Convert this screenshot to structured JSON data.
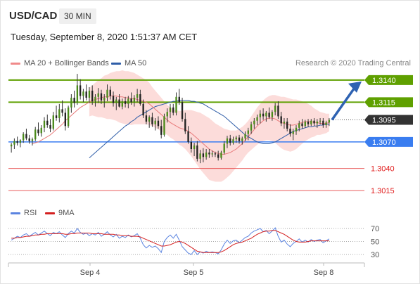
{
  "header": {
    "pair": "USD/CAD",
    "timeframe": "30 MIN",
    "datetime": "Tuesday, September 8, 2020 1:51:37 AM CET",
    "credit": "Research © 2020 Trading Central"
  },
  "legend": {
    "ma20": "MA 20 + Bollinger Bands",
    "ma50": "MA 50",
    "rsi": "RSI",
    "rsi_ma": "9MA"
  },
  "colors": {
    "resistance": "#5fa000",
    "support": "#3a7df0",
    "projection": "#2e62b2",
    "current": "#333333",
    "weak_support": "#e01a1a",
    "ma20": "#e87a7a",
    "bollinger_fill": "#fcd6d3",
    "ma50": "#2f5ea8",
    "rsi": "#5b84e0",
    "rsi_ma": "#d42020"
  },
  "chart_data": [
    {
      "type": "candlestick",
      "x_labels": [
        "Sep 4",
        "Sep 5",
        "Sep 8"
      ],
      "ylim": [
        1.3,
        1.3155
      ],
      "levels": [
        {
          "label": "1.3140",
          "value": 1.314,
          "kind": "resistance"
        },
        {
          "label": "1.3115",
          "value": 1.3115,
          "kind": "resistance"
        },
        {
          "label": "1.3095",
          "value": 1.3095,
          "kind": "current"
        },
        {
          "label": "1.3070",
          "value": 1.307,
          "kind": "support"
        },
        {
          "label": "1.3040",
          "value": 1.304,
          "kind": "weak"
        },
        {
          "label": "1.3015",
          "value": 1.3015,
          "kind": "weak"
        }
      ],
      "candles": [
        [
          1.3065,
          1.3069,
          1.3058,
          1.3067
        ],
        [
          1.3067,
          1.3074,
          1.3062,
          1.3071
        ],
        [
          1.3071,
          1.3076,
          1.3066,
          1.3069
        ],
        [
          1.3069,
          1.3073,
          1.3064,
          1.3072
        ],
        [
          1.3072,
          1.3081,
          1.3069,
          1.3079
        ],
        [
          1.3079,
          1.3085,
          1.3072,
          1.3074
        ],
        [
          1.3074,
          1.3078,
          1.3068,
          1.3071
        ],
        [
          1.3071,
          1.3075,
          1.3066,
          1.3073
        ],
        [
          1.3073,
          1.3087,
          1.3071,
          1.3084
        ],
        [
          1.3084,
          1.3092,
          1.3077,
          1.308
        ],
        [
          1.308,
          1.3089,
          1.3076,
          1.3086
        ],
        [
          1.3086,
          1.3098,
          1.3081,
          1.3094
        ],
        [
          1.3094,
          1.3101,
          1.3086,
          1.3089
        ],
        [
          1.3089,
          1.3096,
          1.3081,
          1.3085
        ],
        [
          1.3085,
          1.3104,
          1.3083,
          1.31
        ],
        [
          1.31,
          1.3111,
          1.3094,
          1.3097
        ],
        [
          1.3097,
          1.3113,
          1.3092,
          1.3107
        ],
        [
          1.3107,
          1.3117,
          1.3099,
          1.3103
        ],
        [
          1.3103,
          1.3108,
          1.3083,
          1.3088
        ],
        [
          1.3088,
          1.3111,
          1.3086,
          1.3109
        ],
        [
          1.3109,
          1.3124,
          1.3103,
          1.312
        ],
        [
          1.312,
          1.3128,
          1.3109,
          1.3114
        ],
        [
          1.3114,
          1.3147,
          1.3112,
          1.3134
        ],
        [
          1.3134,
          1.3141,
          1.3118,
          1.3122
        ],
        [
          1.3122,
          1.313,
          1.3115,
          1.3127
        ],
        [
          1.3127,
          1.3135,
          1.3117,
          1.312
        ],
        [
          1.312,
          1.3132,
          1.3114,
          1.3128
        ],
        [
          1.3128,
          1.3134,
          1.3112,
          1.3116
        ],
        [
          1.3116,
          1.3124,
          1.311,
          1.3121
        ],
        [
          1.3121,
          1.3131,
          1.3114,
          1.3125
        ],
        [
          1.3125,
          1.3129,
          1.3113,
          1.3117
        ],
        [
          1.3117,
          1.3124,
          1.3109,
          1.312
        ],
        [
          1.312,
          1.3135,
          1.3116,
          1.3129
        ],
        [
          1.3129,
          1.3133,
          1.3118,
          1.3122
        ],
        [
          1.3122,
          1.3127,
          1.311,
          1.3114
        ],
        [
          1.3114,
          1.3121,
          1.3106,
          1.3118
        ],
        [
          1.3118,
          1.3124,
          1.3109,
          1.311
        ],
        [
          1.311,
          1.3119,
          1.3107,
          1.3116
        ],
        [
          1.3116,
          1.3121,
          1.3109,
          1.3113
        ],
        [
          1.3113,
          1.3122,
          1.3108,
          1.3119
        ],
        [
          1.3119,
          1.3126,
          1.3112,
          1.3115
        ],
        [
          1.3115,
          1.3123,
          1.311,
          1.312
        ],
        [
          1.312,
          1.313,
          1.3115,
          1.3124
        ],
        [
          1.3124,
          1.3129,
          1.3111,
          1.3113
        ],
        [
          1.3113,
          1.3118,
          1.3097,
          1.31
        ],
        [
          1.31,
          1.3106,
          1.309,
          1.3093
        ],
        [
          1.3093,
          1.31,
          1.3086,
          1.3098
        ],
        [
          1.3098,
          1.3103,
          1.3087,
          1.309
        ],
        [
          1.309,
          1.3097,
          1.3083,
          1.3094
        ],
        [
          1.3094,
          1.3099,
          1.3085,
          1.3088
        ],
        [
          1.3088,
          1.3095,
          1.3074,
          1.3078
        ],
        [
          1.3078,
          1.3102,
          1.3076,
          1.3099
        ],
        [
          1.3099,
          1.3108,
          1.3092,
          1.3104
        ],
        [
          1.3104,
          1.3113,
          1.3097,
          1.3109
        ],
        [
          1.3109,
          1.3113,
          1.31,
          1.3103
        ],
        [
          1.3103,
          1.3126,
          1.31,
          1.3121
        ],
        [
          1.3121,
          1.313,
          1.3112,
          1.3115
        ],
        [
          1.3115,
          1.312,
          1.3093,
          1.3096
        ],
        [
          1.3096,
          1.3103,
          1.3079,
          1.3082
        ],
        [
          1.3082,
          1.3088,
          1.3068,
          1.307
        ],
        [
          1.307,
          1.3075,
          1.3058,
          1.3062
        ],
        [
          1.3062,
          1.3069,
          1.3054,
          1.3066
        ],
        [
          1.3066,
          1.3071,
          1.3048,
          1.3051
        ],
        [
          1.3051,
          1.3061,
          1.3046,
          1.3057
        ],
        [
          1.3057,
          1.3063,
          1.3047,
          1.3053
        ],
        [
          1.3053,
          1.3062,
          1.305,
          1.3058
        ],
        [
          1.3058,
          1.3062,
          1.3052,
          1.3056
        ],
        [
          1.3056,
          1.306,
          1.3053,
          1.3057
        ],
        [
          1.3057,
          1.3059,
          1.3053,
          1.3056
        ],
        [
          1.3056,
          1.306,
          1.3049,
          1.3052
        ],
        [
          1.3052,
          1.306,
          1.305,
          1.3058
        ],
        [
          1.3058,
          1.3071,
          1.3056,
          1.3068
        ],
        [
          1.3068,
          1.3077,
          1.3063,
          1.3074
        ],
        [
          1.3074,
          1.3078,
          1.3066,
          1.3069
        ],
        [
          1.3069,
          1.3076,
          1.3067,
          1.3073
        ],
        [
          1.3073,
          1.3077,
          1.3069,
          1.3075
        ],
        [
          1.3075,
          1.3078,
          1.3068,
          1.3071
        ],
        [
          1.3071,
          1.3076,
          1.3067,
          1.3074
        ],
        [
          1.3074,
          1.3082,
          1.3071,
          1.3079
        ],
        [
          1.3079,
          1.3086,
          1.3072,
          1.3083
        ],
        [
          1.3083,
          1.3093,
          1.3079,
          1.309
        ],
        [
          1.309,
          1.3097,
          1.3085,
          1.3094
        ],
        [
          1.3094,
          1.3101,
          1.3089,
          1.3098
        ],
        [
          1.3098,
          1.3106,
          1.3091,
          1.3102
        ],
        [
          1.3102,
          1.3108,
          1.3095,
          1.3099
        ],
        [
          1.3099,
          1.3105,
          1.3093,
          1.3103
        ],
        [
          1.3103,
          1.3109,
          1.3096,
          1.3098
        ],
        [
          1.3098,
          1.3106,
          1.3094,
          1.3104
        ],
        [
          1.3104,
          1.3114,
          1.31,
          1.3111
        ],
        [
          1.3111,
          1.3116,
          1.3096,
          1.3099
        ],
        [
          1.3099,
          1.3104,
          1.3088,
          1.3091
        ],
        [
          1.3091,
          1.3097,
          1.3085,
          1.3093
        ],
        [
          1.3093,
          1.3097,
          1.3082,
          1.3085
        ],
        [
          1.3085,
          1.309,
          1.3076,
          1.3079
        ],
        [
          1.3079,
          1.3085,
          1.3072,
          1.3082
        ],
        [
          1.3082,
          1.3089,
          1.3078,
          1.3086
        ],
        [
          1.3086,
          1.3094,
          1.3082,
          1.3091
        ],
        [
          1.3091,
          1.3096,
          1.3085,
          1.3088
        ],
        [
          1.3088,
          1.3095,
          1.3086,
          1.3093
        ],
        [
          1.3093,
          1.3096,
          1.3087,
          1.309
        ],
        [
          1.309,
          1.3096,
          1.3088,
          1.3094
        ],
        [
          1.3094,
          1.3097,
          1.3088,
          1.3091
        ],
        [
          1.3091,
          1.3096,
          1.3086,
          1.3093
        ],
        [
          1.3093,
          1.3097,
          1.309,
          1.3094
        ],
        [
          1.3094,
          1.3097,
          1.3086,
          1.3089
        ],
        [
          1.3089,
          1.3094,
          1.3086,
          1.3092
        ],
        [
          1.3092,
          1.3097,
          1.3088,
          1.3095
        ]
      ],
      "ma20": [
        1.3068,
        1.3069,
        1.307,
        1.3072,
        1.3074,
        1.3076,
        1.3078,
        1.3081,
        1.3084,
        1.3087,
        1.309,
        1.3094,
        1.3097,
        1.31,
        1.3103,
        1.3106,
        1.3109,
        1.3111,
        1.3113,
        1.3115,
        1.3117,
        1.3118,
        1.3119,
        1.312,
        1.3121,
        1.3121,
        1.3122,
        1.3122,
        1.3122,
        1.3121,
        1.3121,
        1.312,
        1.312,
        1.3119,
        1.3119,
        1.3118,
        1.3117,
        1.3116,
        1.3115,
        1.3113,
        1.311,
        1.3107,
        1.3104,
        1.3101,
        1.3098,
        1.3095,
        1.3092,
        1.309,
        1.3088,
        1.3086,
        1.3085,
        1.3084,
        1.3082,
        1.308,
        1.3077,
        1.3074,
        1.3071,
        1.3068,
        1.3065,
        1.3062,
        1.306,
        1.3058,
        1.3057,
        1.3056,
        1.3056,
        1.3057,
        1.3058,
        1.306,
        1.3062,
        1.3065,
        1.3068,
        1.3072,
        1.3076,
        1.308,
        1.3084,
        1.3088,
        1.3091,
        1.3094,
        1.3096,
        1.3097,
        1.3097,
        1.3096,
        1.3094,
        1.3092,
        1.3091,
        1.309,
        1.3089,
        1.3089,
        1.309,
        1.3091,
        1.3092,
        1.3093,
        1.3093,
        1.3093,
        1.3092,
        1.3092,
        1.3091,
        1.3091,
        1.3091,
        1.3092
      ],
      "ma50": [
        1.3052,
        1.3055,
        1.3058,
        1.3061,
        1.3064,
        1.3067,
        1.307,
        1.3073,
        1.3076,
        1.3079,
        1.3082,
        1.3085,
        1.3088,
        1.309,
        1.3093,
        1.3095,
        1.3098,
        1.31,
        1.3102,
        1.3104,
        1.3106,
        1.3108,
        1.311,
        1.3111,
        1.3112,
        1.3113,
        1.3114,
        1.3115,
        1.3116,
        1.3116,
        1.3117,
        1.3117,
        1.3117,
        1.3117,
        1.3116,
        1.3116,
        1.3115,
        1.3114,
        1.3113,
        1.3111,
        1.3109,
        1.3107,
        1.3105,
        1.3103,
        1.3101,
        1.3099,
        1.3096,
        1.3093,
        1.309,
        1.3087,
        1.3084,
        1.3081,
        1.3078,
        1.3076,
        1.3074,
        1.3072,
        1.307,
        1.3069,
        1.3068,
        1.3068,
        1.3068,
        1.3069,
        1.307,
        1.3072,
        1.3074,
        1.3076,
        1.3078,
        1.308,
        1.3082,
        1.3083,
        1.3084,
        1.3085,
        1.3086,
        1.3087,
        1.3087,
        1.3088,
        1.3088,
        1.3089,
        1.3089,
        1.309,
        1.309
      ],
      "band_width": [
        0.0016,
        0.0017,
        0.0019,
        0.0021,
        0.0022,
        0.0024,
        0.0025,
        0.0026,
        0.0027,
        0.0028,
        0.0029,
        0.003,
        0.003,
        0.003,
        0.003,
        0.0029,
        0.0028,
        0.0027,
        0.0026,
        0.0025,
        0.0024,
        0.0022,
        0.0021,
        0.002,
        0.0019,
        0.0018,
        0.0017,
        0.0017,
        0.0017,
        0.0018,
        0.0019,
        0.002,
        0.0022,
        0.0024,
        0.0026,
        0.0028,
        0.003,
        0.0032,
        0.0033,
        0.0034,
        0.0035,
        0.0034,
        0.0033,
        0.0032,
        0.0031,
        0.0029,
        0.0027,
        0.0025,
        0.0023,
        0.0021,
        0.002,
        0.0019,
        0.0018,
        0.0018,
        0.0019,
        0.002,
        0.0021,
        0.0022,
        0.0023,
        0.0024,
        0.0025,
        0.0026,
        0.0027,
        0.0028,
        0.0029,
        0.003,
        0.003,
        0.003,
        0.0029,
        0.0028,
        0.0026,
        0.0024,
        0.0022,
        0.002,
        0.0018,
        0.0016,
        0.0014,
        0.0013,
        0.0012,
        0.0011,
        0.001
      ],
      "projection": {
        "from": 1.3095,
        "to": 1.314
      }
    },
    {
      "type": "line",
      "y_ticks": [
        70,
        50,
        30
      ],
      "ylim": [
        20,
        80
      ],
      "series": [
        {
          "name": "RSI",
          "values": [
            52,
            55,
            58,
            56,
            60,
            62,
            58,
            61,
            64,
            60,
            63,
            66,
            62,
            59,
            64,
            62,
            65,
            60,
            56,
            62,
            66,
            63,
            70,
            64,
            61,
            63,
            59,
            62,
            60,
            64,
            58,
            61,
            65,
            60,
            57,
            61,
            55,
            58,
            56,
            60,
            57,
            59,
            62,
            55,
            45,
            40,
            44,
            41,
            43,
            39,
            33,
            50,
            56,
            60,
            55,
            61,
            52,
            42,
            37,
            32,
            30,
            36,
            30,
            34,
            32,
            35,
            33,
            34,
            33,
            31,
            37,
            46,
            52,
            47,
            51,
            52,
            48,
            52,
            56,
            58,
            63,
            66,
            68,
            70,
            65,
            67,
            62,
            66,
            71,
            58,
            49,
            52,
            46,
            42,
            47,
            50,
            54,
            49,
            52,
            49,
            53,
            50,
            52,
            53,
            48,
            51,
            54
          ]
        },
        {
          "name": "9MA",
          "values": [
            55,
            55,
            56,
            56,
            57,
            58,
            58,
            59,
            60,
            60,
            61,
            61,
            62,
            62,
            62,
            62,
            62,
            62,
            61,
            61,
            62,
            62,
            63,
            63,
            63,
            63,
            63,
            62,
            62,
            62,
            62,
            61,
            61,
            61,
            61,
            60,
            60,
            59,
            59,
            59,
            58,
            58,
            58,
            57,
            55,
            53,
            51,
            49,
            47,
            45,
            43,
            43,
            44,
            45,
            47,
            49,
            50,
            49,
            47,
            44,
            41,
            38,
            35,
            34,
            33,
            33,
            33,
            33,
            33,
            33,
            34,
            36,
            39,
            42,
            45,
            47,
            48,
            49,
            51,
            53,
            55,
            58,
            61,
            63,
            65,
            66,
            66,
            67,
            67,
            65,
            63,
            61,
            58,
            55,
            52,
            50,
            49,
            49,
            49,
            50,
            51,
            51,
            51,
            51,
            51,
            51,
            51
          ]
        }
      ]
    }
  ]
}
